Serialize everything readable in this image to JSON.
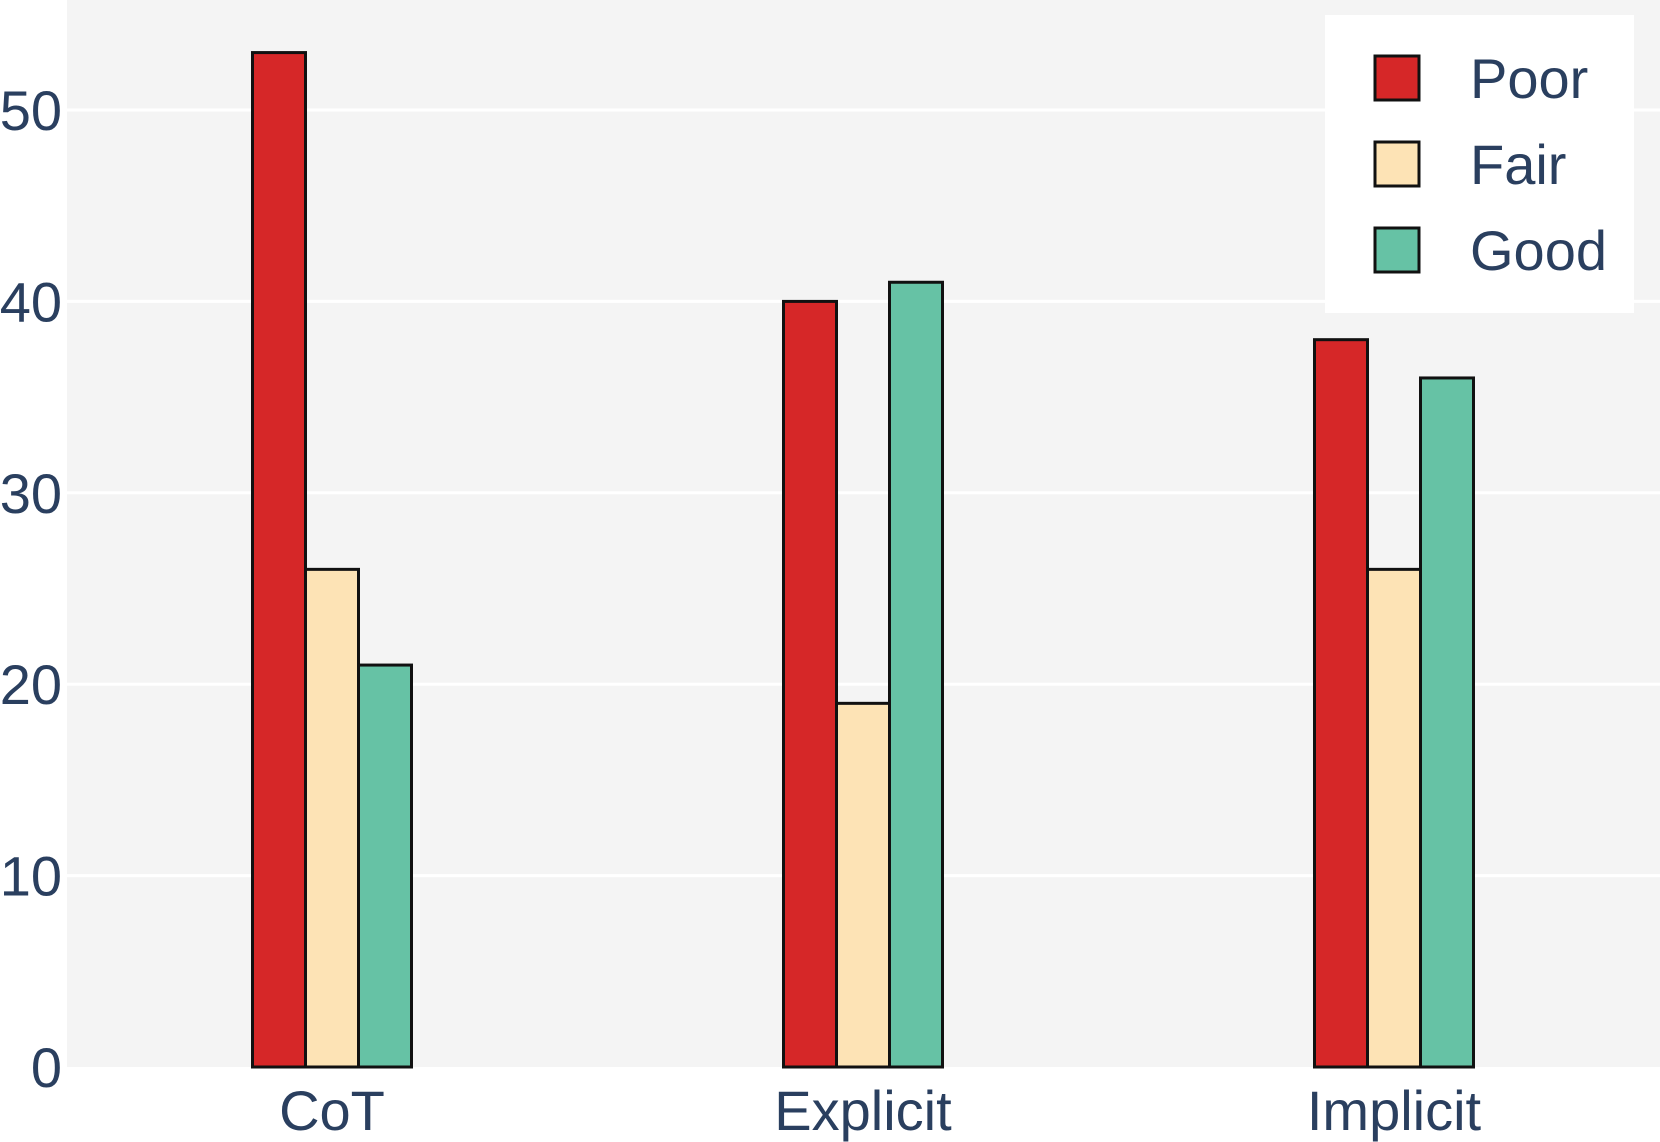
{
  "chart_data": {
    "type": "bar",
    "categories": [
      "CoT",
      "Explicit",
      "Implicit"
    ],
    "series": [
      {
        "name": "Poor",
        "values": [
          53,
          40,
          38
        ],
        "color": "#d62728"
      },
      {
        "name": "Fair",
        "values": [
          26,
          19,
          26
        ],
        "color": "#fde3b5"
      },
      {
        "name": "Good",
        "values": [
          21,
          41,
          36
        ],
        "color": "#66c2a5"
      }
    ],
    "title": "",
    "xlabel": "",
    "ylabel": "",
    "ylim": [
      0,
      55
    ],
    "yticks": [
      0,
      10,
      20,
      30,
      40,
      50
    ],
    "grid": true,
    "legend_position": "top-right",
    "colors": {
      "plot_background": "#f4f4f4",
      "gridline": "#ffffff",
      "bar_outline": "#111111",
      "text": "#2a3f5f"
    }
  }
}
